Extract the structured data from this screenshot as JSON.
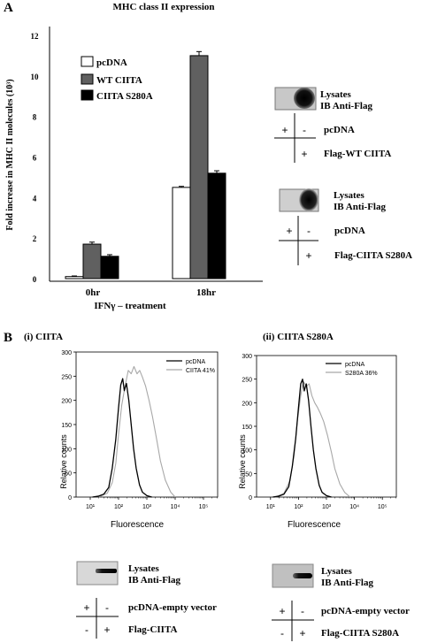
{
  "panel_a": {
    "label": "A",
    "blot1": {
      "caption1": "Lysates",
      "caption2": "IB Anti-Flag",
      "row1": {
        "cells": [
          "+",
          "-"
        ],
        "label": "pcDNA"
      },
      "row2": {
        "cells": [
          "",
          "+"
        ],
        "label": "Flag-WT CIITA"
      }
    },
    "blot2": {
      "caption1": "Lysates",
      "caption2": "IB Anti-Flag",
      "row1": {
        "cells": [
          "+",
          "-"
        ],
        "label": "pcDNA"
      },
      "row2": {
        "cells": [
          "",
          "+"
        ],
        "label": "Flag-CIITA S280A"
      }
    }
  },
  "panel_b": {
    "label": "B",
    "blot1": {
      "caption1": "Lysates",
      "caption2": "IB Anti-Flag",
      "row1": {
        "cells": [
          "+",
          "-"
        ],
        "label": "pcDNA-empty vector"
      },
      "row2": {
        "cells": [
          "-",
          "+"
        ],
        "label": "Flag-CIITA"
      }
    },
    "blot2": {
      "caption1": "Lysates",
      "caption2": "IB Anti-Flag",
      "row1": {
        "cells": [
          "+",
          "-"
        ],
        "label": "pcDNA-empty vector"
      },
      "row2": {
        "cells": [
          "-",
          "+"
        ],
        "label": "Flag-CIITA S280A"
      }
    }
  },
  "colors": {
    "pcdna": "#ffffff",
    "wt": "#606060",
    "s280a": "#000000",
    "hist_ctrl": "#000000",
    "hist_ciita": "#a8a8a8"
  },
  "chart_data": [
    {
      "type": "bar",
      "title": "MHC class II expression",
      "xlabel": "IFNγ – treatment",
      "ylabel": "Fold increase in MHC II molecules (10³)",
      "categories": [
        "0hr",
        "18hr"
      ],
      "series": [
        {
          "name": "pcDNA",
          "values": [
            0.1,
            4.5
          ],
          "errors": [
            0.03,
            0.05
          ]
        },
        {
          "name": "WT CIITA",
          "values": [
            1.7,
            11.0
          ],
          "errors": [
            0.1,
            0.2
          ]
        },
        {
          "name": "CIITA S280A",
          "values": [
            1.1,
            5.2
          ],
          "errors": [
            0.08,
            0.12
          ]
        }
      ],
      "ylim": [
        0,
        12
      ],
      "yticks": [
        "0",
        "2",
        "4",
        "6",
        "8",
        "10",
        "12"
      ],
      "legend": "top-left"
    },
    {
      "type": "line",
      "title": "(i) CIITA",
      "xlabel": "Fluorescence",
      "ylabel": "Relative counts",
      "xscale": "log",
      "xticks": [
        "10¹",
        "10²",
        "10³",
        "10⁴",
        "10⁵"
      ],
      "ylim": [
        0,
        300
      ],
      "yticks": [
        "0",
        "50",
        "100",
        "150",
        "200",
        "250",
        "300"
      ],
      "series": [
        {
          "name": "pcDNA",
          "x": [
            12,
            20,
            30,
            45,
            60,
            80,
            100,
            120,
            140,
            160,
            190,
            230,
            280,
            340,
            420,
            550,
            700,
            1000,
            1500
          ],
          "y": [
            0,
            2,
            6,
            20,
            60,
            120,
            185,
            232,
            245,
            220,
            235,
            200,
            150,
            100,
            60,
            25,
            10,
            3,
            0
          ]
        },
        {
          "name": "CIITA 41%",
          "x": [
            20,
            40,
            60,
            80,
            100,
            130,
            170,
            220,
            280,
            350,
            450,
            560,
            700,
            900,
            1200,
            1600,
            2200,
            3000,
            4500,
            7000,
            10000
          ],
          "y": [
            0,
            8,
            30,
            70,
            130,
            190,
            230,
            262,
            255,
            270,
            255,
            262,
            248,
            230,
            200,
            165,
            120,
            75,
            35,
            10,
            0
          ]
        }
      ]
    },
    {
      "type": "line",
      "title": "(ii) CIITA S280A",
      "xlabel": "Fluorescence",
      "ylabel": "Relative counts",
      "xscale": "log",
      "xticks": [
        "10¹",
        "10²",
        "10³",
        "10⁴",
        "10⁵"
      ],
      "ylim": [
        0,
        300
      ],
      "yticks": [
        "0",
        "50",
        "100",
        "150",
        "200",
        "250",
        "300"
      ],
      "series": [
        {
          "name": "pcDNA",
          "x": [
            12,
            20,
            30,
            45,
            60,
            80,
            100,
            120,
            140,
            160,
            190,
            230,
            280,
            340,
            420,
            550,
            700,
            1000,
            1500
          ],
          "y": [
            0,
            2,
            6,
            22,
            65,
            125,
            190,
            240,
            250,
            225,
            240,
            205,
            150,
            100,
            60,
            25,
            10,
            3,
            0
          ]
        },
        {
          "name": "S280A 36%",
          "x": [
            15,
            30,
            50,
            70,
            90,
            120,
            150,
            190,
            240,
            300,
            380,
            480,
            600,
            800,
            1100,
            1500,
            2000,
            3000,
            4500,
            7000
          ],
          "y": [
            0,
            8,
            35,
            90,
            160,
            215,
            245,
            235,
            240,
            215,
            200,
            190,
            178,
            160,
            130,
            95,
            60,
            28,
            10,
            0
          ]
        }
      ]
    }
  ]
}
